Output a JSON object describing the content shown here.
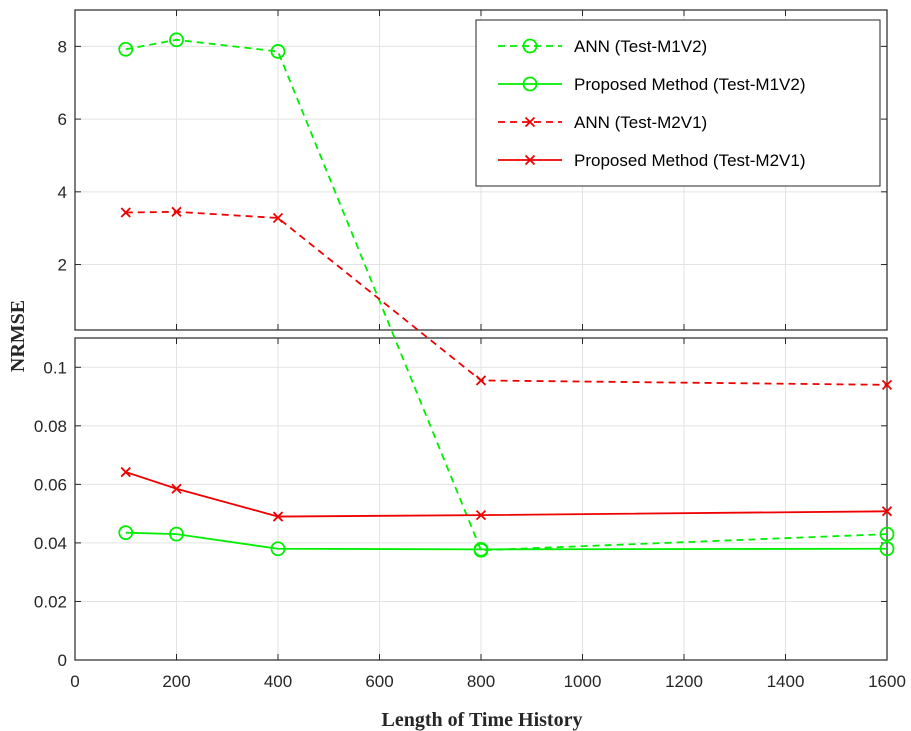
{
  "chart_data": {
    "type": "line",
    "xlabel": "Length of Time History",
    "ylabel": "NRMSE",
    "xlim": [
      0,
      1600
    ],
    "xticks": [
      0,
      200,
      400,
      600,
      800,
      1000,
      1200,
      1400,
      1600
    ],
    "grid": true,
    "legend_placement": "top-right",
    "broken_y_axis": true,
    "panels": [
      {
        "name": "upper",
        "ylim": [
          0.2,
          9
        ],
        "yticks": [
          2,
          4,
          6,
          8
        ],
        "tick_labels": [
          "2",
          "4",
          "6",
          "8"
        ]
      },
      {
        "name": "lower",
        "ylim": [
          0,
          0.11
        ],
        "yticks": [
          0,
          0.02,
          0.04,
          0.06,
          0.08,
          0.1
        ],
        "tick_labels": [
          "0",
          "0.02",
          "0.04",
          "0.06",
          "0.08",
          "0.1"
        ]
      }
    ],
    "series": [
      {
        "name": "ANN (Test-M1V2)",
        "color": "#00ee00",
        "dash": "dashed",
        "marker": "circle",
        "x": [
          100,
          200,
          400,
          800,
          1600
        ],
        "y": [
          7.92,
          8.18,
          7.86,
          0.0375,
          0.043
        ]
      },
      {
        "name": "Proposed Method (Test-M1V2)",
        "color": "#00ee00",
        "dash": "solid",
        "marker": "circle",
        "x": [
          100,
          200,
          400,
          800,
          1600
        ],
        "y": [
          0.0435,
          0.043,
          0.038,
          0.0378,
          0.038
        ]
      },
      {
        "name": "ANN (Test-M2V1)",
        "color": "#ee0000",
        "dash": "dashed",
        "marker": "x",
        "x": [
          100,
          200,
          400,
          800,
          1600
        ],
        "y": [
          3.43,
          3.45,
          3.28,
          0.0955,
          0.094
        ]
      },
      {
        "name": "Proposed Method (Test-M2V1)",
        "color": "#ee0000",
        "dash": "solid",
        "marker": "x",
        "x": [
          100,
          200,
          400,
          800,
          1600
        ],
        "y": [
          0.0642,
          0.0585,
          0.049,
          0.0495,
          0.0508
        ]
      }
    ]
  }
}
